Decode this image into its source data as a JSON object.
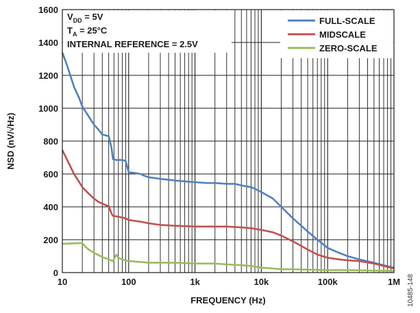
{
  "chart_data": {
    "type": "line",
    "xlabel": "FREQUENCY (Hz)",
    "ylabel": "NSD (nV/√Hz)",
    "x_scale": "log",
    "xlim": [
      10,
      1000000
    ],
    "ylim": [
      0,
      1600
    ],
    "x_ticks": [
      {
        "value": 10,
        "label": "10"
      },
      {
        "value": 100,
        "label": "100"
      },
      {
        "value": 1000,
        "label": "1k"
      },
      {
        "value": 10000,
        "label": "10k"
      },
      {
        "value": 100000,
        "label": "100k"
      },
      {
        "value": 1000000,
        "label": "1M"
      }
    ],
    "y_ticks": [
      0,
      200,
      400,
      600,
      800,
      1000,
      1200,
      1400,
      1600
    ],
    "grid": true,
    "legend_position": "top-right",
    "annotation": {
      "line1_main": "V",
      "line1_sub": "DD",
      "line1_rest": " = 5V",
      "line2_main": "T",
      "line2_sub": "A",
      "line2_rest": " = 25°C",
      "line3": "INTERNAL REFERENCE = 2.5V"
    },
    "figure_id": "10485-148",
    "series": [
      {
        "name": "FULL-SCALE",
        "color": "#4f81bd",
        "points": [
          [
            10,
            1340
          ],
          [
            12,
            1250
          ],
          [
            15,
            1130
          ],
          [
            18,
            1060
          ],
          [
            20,
            1010
          ],
          [
            25,
            950
          ],
          [
            30,
            900
          ],
          [
            35,
            870
          ],
          [
            40,
            840
          ],
          [
            45,
            835
          ],
          [
            50,
            830
          ],
          [
            55,
            760
          ],
          [
            58,
            690
          ],
          [
            65,
            685
          ],
          [
            80,
            685
          ],
          [
            90,
            680
          ],
          [
            100,
            610
          ],
          [
            130,
            605
          ],
          [
            150,
            600
          ],
          [
            170,
            590
          ],
          [
            200,
            580
          ],
          [
            250,
            575
          ],
          [
            300,
            570
          ],
          [
            400,
            565
          ],
          [
            500,
            560
          ],
          [
            700,
            555
          ],
          [
            1000,
            550
          ],
          [
            1500,
            545
          ],
          [
            2000,
            545
          ],
          [
            3000,
            540
          ],
          [
            4000,
            540
          ],
          [
            5000,
            530
          ],
          [
            7000,
            520
          ],
          [
            8000,
            510
          ],
          [
            10000,
            490
          ],
          [
            15000,
            450
          ],
          [
            20000,
            400
          ],
          [
            30000,
            330
          ],
          [
            50000,
            250
          ],
          [
            70000,
            200
          ],
          [
            100000,
            150
          ],
          [
            130000,
            130
          ],
          [
            200000,
            100
          ],
          [
            300000,
            80
          ],
          [
            500000,
            60
          ],
          [
            700000,
            45
          ],
          [
            1000000,
            30
          ]
        ]
      },
      {
        "name": "MIDSCALE",
        "color": "#c0504d",
        "points": [
          [
            10,
            745
          ],
          [
            12,
            680
          ],
          [
            15,
            600
          ],
          [
            18,
            550
          ],
          [
            20,
            520
          ],
          [
            25,
            480
          ],
          [
            30,
            450
          ],
          [
            35,
            430
          ],
          [
            40,
            420
          ],
          [
            45,
            410
          ],
          [
            50,
            405
          ],
          [
            55,
            360
          ],
          [
            58,
            345
          ],
          [
            70,
            340
          ],
          [
            90,
            330
          ],
          [
            100,
            320
          ],
          [
            150,
            310
          ],
          [
            200,
            300
          ],
          [
            300,
            290
          ],
          [
            500,
            285
          ],
          [
            1000,
            280
          ],
          [
            2000,
            280
          ],
          [
            3000,
            280
          ],
          [
            5000,
            275
          ],
          [
            7000,
            270
          ],
          [
            10000,
            260
          ],
          [
            15000,
            245
          ],
          [
            20000,
            225
          ],
          [
            30000,
            190
          ],
          [
            50000,
            140
          ],
          [
            70000,
            110
          ],
          [
            100000,
            90
          ],
          [
            150000,
            80
          ],
          [
            200000,
            75
          ],
          [
            300000,
            70
          ],
          [
            500000,
            55
          ],
          [
            700000,
            40
          ],
          [
            1000000,
            25
          ]
        ]
      },
      {
        "name": "ZERO-SCALE",
        "color": "#9bbb59",
        "points": [
          [
            10,
            175
          ],
          [
            15,
            178
          ],
          [
            20,
            180
          ],
          [
            22,
            160
          ],
          [
            25,
            140
          ],
          [
            30,
            120
          ],
          [
            40,
            95
          ],
          [
            50,
            80
          ],
          [
            58,
            70
          ],
          [
            65,
            110
          ],
          [
            70,
            90
          ],
          [
            80,
            80
          ],
          [
            100,
            70
          ],
          [
            150,
            65
          ],
          [
            200,
            60
          ],
          [
            300,
            60
          ],
          [
            500,
            60
          ],
          [
            1000,
            55
          ],
          [
            2000,
            55
          ],
          [
            3000,
            50
          ],
          [
            5000,
            45
          ],
          [
            7000,
            40
          ],
          [
            10000,
            30
          ],
          [
            15000,
            25
          ],
          [
            20000,
            20
          ],
          [
            30000,
            20
          ],
          [
            50000,
            18
          ],
          [
            100000,
            15
          ],
          [
            200000,
            15
          ],
          [
            500000,
            12
          ],
          [
            1000000,
            10
          ]
        ]
      }
    ]
  }
}
